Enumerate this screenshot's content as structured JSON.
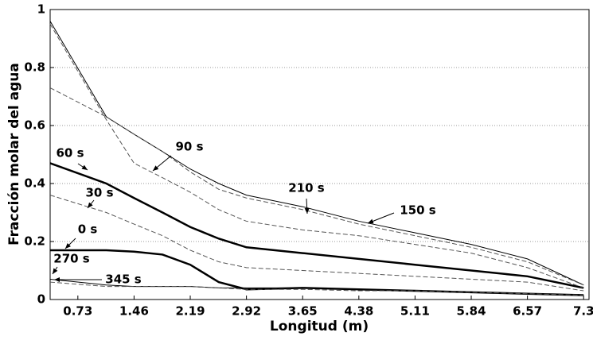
{
  "chart_data": {
    "type": "line",
    "xlabel": "Longitud (m)",
    "ylabel": "Fracción molar del agua",
    "x": [
      0.37,
      1.1,
      1.46,
      1.83,
      2.19,
      2.56,
      2.92,
      3.65,
      4.38,
      5.11,
      5.84,
      6.57,
      7.3
    ],
    "xlim": [
      0.37,
      7.37
    ],
    "xticks": [
      0.73,
      1.46,
      2.19,
      2.92,
      3.65,
      4.38,
      5.11,
      5.84,
      6.57,
      7.3
    ],
    "ylim": [
      0,
      1
    ],
    "yticks": [
      0,
      0.2,
      0.4,
      0.6,
      0.8,
      1
    ],
    "grid": true,
    "series": [
      {
        "name": "0 s",
        "color": "#000000",
        "linewidth": 2.5,
        "dash": false,
        "values": [
          0.17,
          0.17,
          0.165,
          0.155,
          0.12,
          0.06,
          0.035,
          0.04,
          0.035,
          0.03,
          0.025,
          0.02,
          0.015
        ]
      },
      {
        "name": "30 s",
        "color": "#555555",
        "linewidth": 1,
        "dash": true,
        "values": [
          0.36,
          0.3,
          0.26,
          0.22,
          0.17,
          0.13,
          0.11,
          0.1,
          0.09,
          0.08,
          0.07,
          0.06,
          0.03
        ]
      },
      {
        "name": "60 s",
        "color": "#000000",
        "linewidth": 2.5,
        "dash": false,
        "values": [
          0.47,
          0.4,
          0.35,
          0.3,
          0.25,
          0.21,
          0.18,
          0.16,
          0.14,
          0.12,
          0.1,
          0.08,
          0.04
        ]
      },
      {
        "name": "90 s",
        "color": "#555555",
        "linewidth": 1,
        "dash": true,
        "values": [
          0.95,
          0.62,
          0.47,
          0.42,
          0.37,
          0.31,
          0.27,
          0.24,
          0.22,
          0.19,
          0.16,
          0.11,
          0.04
        ]
      },
      {
        "name": "150 s",
        "color": "#000000",
        "linewidth": 1,
        "dash": false,
        "values": [
          0.96,
          0.63,
          0.57,
          0.51,
          0.45,
          0.4,
          0.36,
          0.32,
          0.27,
          0.23,
          0.19,
          0.14,
          0.05
        ]
      },
      {
        "name": "210 s",
        "color": "#555555",
        "linewidth": 1,
        "dash": true,
        "values": [
          0.73,
          0.63,
          0.57,
          0.51,
          0.44,
          0.38,
          0.35,
          0.31,
          0.26,
          0.22,
          0.18,
          0.13,
          0.05
        ]
      },
      {
        "name": "270 s",
        "color": "#000000",
        "linewidth": 1,
        "dash": false,
        "values": [
          0.07,
          0.05,
          0.045,
          0.045,
          0.045,
          0.04,
          0.04,
          0.04,
          0.035,
          0.03,
          0.025,
          0.02,
          0.015
        ]
      },
      {
        "name": "345 s",
        "color": "#555555",
        "linewidth": 1,
        "dash": true,
        "values": [
          0.06,
          0.045,
          0.045,
          0.045,
          0.045,
          0.04,
          0.035,
          0.035,
          0.03,
          0.03,
          0.025,
          0.02,
          0.015
        ]
      }
    ]
  }
}
